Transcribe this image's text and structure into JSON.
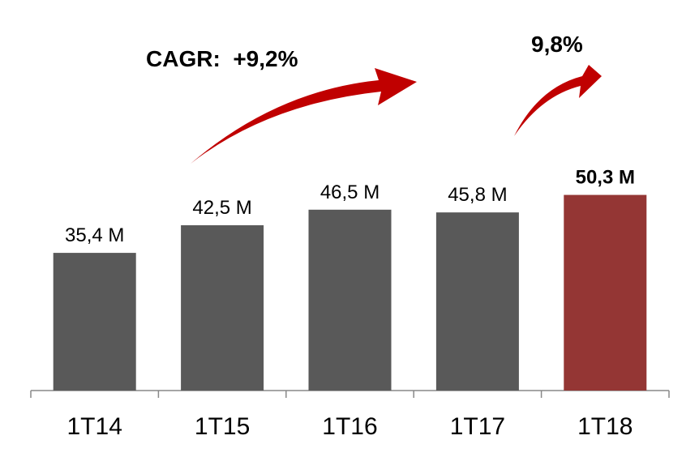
{
  "chart_data": {
    "type": "bar",
    "categories": [
      "1T14",
      "1T15",
      "1T16",
      "1T17",
      "1T18"
    ],
    "values": [
      35.4,
      42.5,
      46.5,
      45.8,
      50.3
    ],
    "value_labels": [
      "35,4 M",
      "42,5 M",
      "46,5 M",
      "45,8 M",
      "50,3 M"
    ],
    "colors": [
      "#595959",
      "#595959",
      "#595959",
      "#595959",
      "#943634"
    ],
    "value_label_bold": [
      false,
      false,
      false,
      false,
      true
    ],
    "annotations": [
      "CAGR:  +9,2%",
      "9,8%"
    ]
  }
}
